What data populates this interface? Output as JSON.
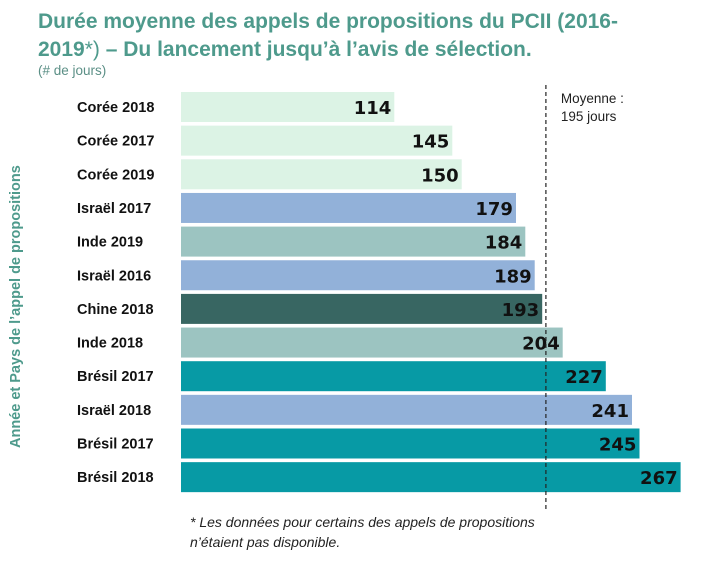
{
  "title": {
    "line1": "Durée moyenne des appels de propositions du PCII (2016-",
    "line2_prefix": "2019",
    "line2_star": "*)",
    "line2_suffix": " – Du lancement jusqu’à l’avis de sélection."
  },
  "unit_label": "(# de jours)",
  "axis_title": "Année et Pays de l’appel de propositions",
  "footnote": {
    "line1": "* Les données pour certains des appels de propositions",
    "line2": "n’étaient pas disponible."
  },
  "colors": {
    "korea": "#dcf3e5",
    "israel": "#92b1d9",
    "india": "#9cc4c1",
    "china": "#386662",
    "brazil": "#079aa5",
    "title": "#4e9a8c"
  },
  "chart_data": {
    "type": "bar",
    "orientation": "horizontal",
    "categories": [
      "Corée 2018",
      "Corée 2017",
      "Corée 2019",
      "Israël 2017",
      "Inde 2019",
      "Israël 2016",
      "Chine 2018",
      "Inde  2018",
      "Brésil 2017",
      "Israël 2018",
      "Brésil 2017",
      "Brésil 2018"
    ],
    "values": [
      114,
      145,
      150,
      179,
      184,
      189,
      193,
      204,
      227,
      241,
      245,
      267
    ],
    "bar_colors": [
      "#dcf3e5",
      "#dcf3e5",
      "#dcf3e5",
      "#92b1d9",
      "#9cc4c1",
      "#92b1d9",
      "#386662",
      "#9cc4c1",
      "#079aa5",
      "#92b1d9",
      "#079aa5",
      "#079aa5"
    ],
    "reference_line": {
      "value": 195,
      "label_line1": "Moyenne :",
      "label_line2": "195 jours"
    },
    "title": "Durée moyenne des appels de propositions du PCII (2016-2019*) – Du lancement jusqu’à l’avis de sélection.",
    "xlabel": "",
    "ylabel": "Année et Pays de l’appel de propositions",
    "grid": false
  }
}
